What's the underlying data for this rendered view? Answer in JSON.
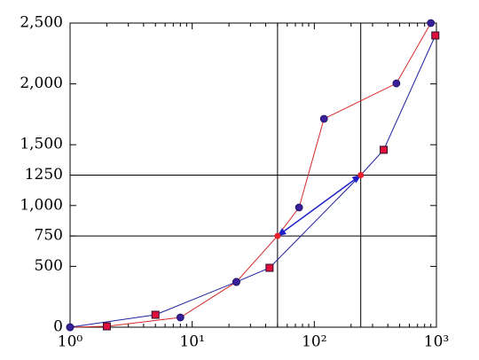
{
  "chart_data": {
    "type": "line",
    "xscale": "log",
    "xlim": [
      1,
      1000
    ],
    "ylim": [
      0,
      2500
    ],
    "xticks": [
      {
        "value": 1,
        "label": "10⁰"
      },
      {
        "value": 10,
        "label": "10¹"
      },
      {
        "value": 100,
        "label": "10²"
      },
      {
        "value": 1000,
        "label": "10³"
      }
    ],
    "yticks": [
      0,
      500,
      750,
      {
        "value": 1000,
        "label": "1,000"
      },
      1250,
      {
        "value": 1500,
        "label": "1,500"
      },
      {
        "value": 2000,
        "label": "2,000"
      },
      {
        "value": 2500,
        "label": "2,500"
      }
    ],
    "vlines": [
      50,
      240
    ],
    "hlines": [
      750,
      1250
    ],
    "series": [
      {
        "color": "#d42a2a",
        "x": [
          1,
          2,
          8,
          23,
          50,
          75,
          120,
          470,
          900
        ],
        "values": [
          0,
          7,
          80,
          372,
          750,
          984,
          1713,
          2004,
          2500
        ],
        "markers": [
          "circle",
          "square",
          "circle",
          "circle",
          "dot",
          "circle",
          "circle",
          "circle",
          "circle"
        ]
      },
      {
        "color": "#1f1fa0",
        "x": [
          1,
          5,
          23,
          43,
          240,
          370,
          980
        ],
        "values": [
          0,
          102,
          372,
          488,
          1250,
          1458,
          2398
        ],
        "markers": [
          "circle",
          "square",
          "circle",
          "square",
          "dot",
          "square",
          "square"
        ]
      }
    ],
    "marker_colors": {
      "circle": "#3a1f9a",
      "square": "#e0103a",
      "dot": "#e8202a"
    },
    "arrow": {
      "from": [
        240,
        1250
      ],
      "to": [
        50,
        750
      ],
      "color": "#1f1fc8"
    }
  }
}
